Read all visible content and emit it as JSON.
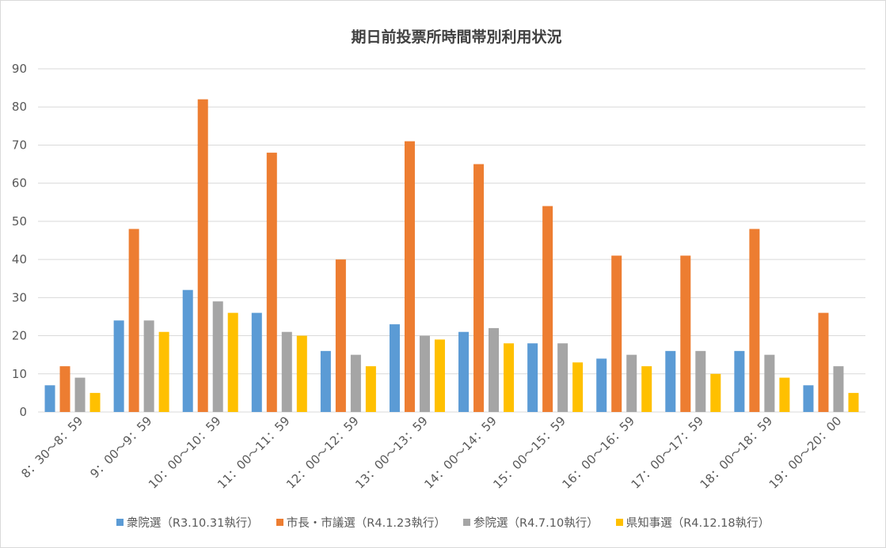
{
  "chart_data": {
    "type": "bar",
    "title": "期日前投票所時間帯別利用状況",
    "categories": [
      "8：30～8：59",
      "9：00～9：59",
      "10：00～10：59",
      "11：00～11：59",
      "12：00～12：59",
      "13：00～13：59",
      "14：00～14：59",
      "15：00～15：59",
      "16：00～16：59",
      "17：00～17：59",
      "18：00～18：59",
      "19：00～20：00"
    ],
    "series": [
      {
        "name": "衆院選（R3.10.31執行）",
        "color": "#5b9bd5",
        "values": [
          7,
          24,
          32,
          26,
          16,
          23,
          21,
          18,
          14,
          16,
          16,
          7
        ]
      },
      {
        "name": "市長・市議選（R4.1.23執行）",
        "color": "#ed7d31",
        "values": [
          12,
          48,
          82,
          68,
          40,
          71,
          65,
          54,
          41,
          41,
          48,
          26
        ]
      },
      {
        "name": "参院選（R4.7.10執行）",
        "color": "#a5a5a5",
        "values": [
          9,
          24,
          29,
          21,
          15,
          20,
          22,
          18,
          15,
          16,
          15,
          12
        ]
      },
      {
        "name": "県知事選（R4.12.18執行）",
        "color": "#ffc000",
        "values": [
          5,
          21,
          26,
          20,
          12,
          19,
          18,
          13,
          12,
          10,
          9,
          5
        ]
      }
    ],
    "ylim": [
      0,
      90
    ],
    "yticks": [
      0,
      10,
      20,
      30,
      40,
      50,
      60,
      70,
      80,
      90
    ],
    "grid": true,
    "legend": "bottom"
  }
}
